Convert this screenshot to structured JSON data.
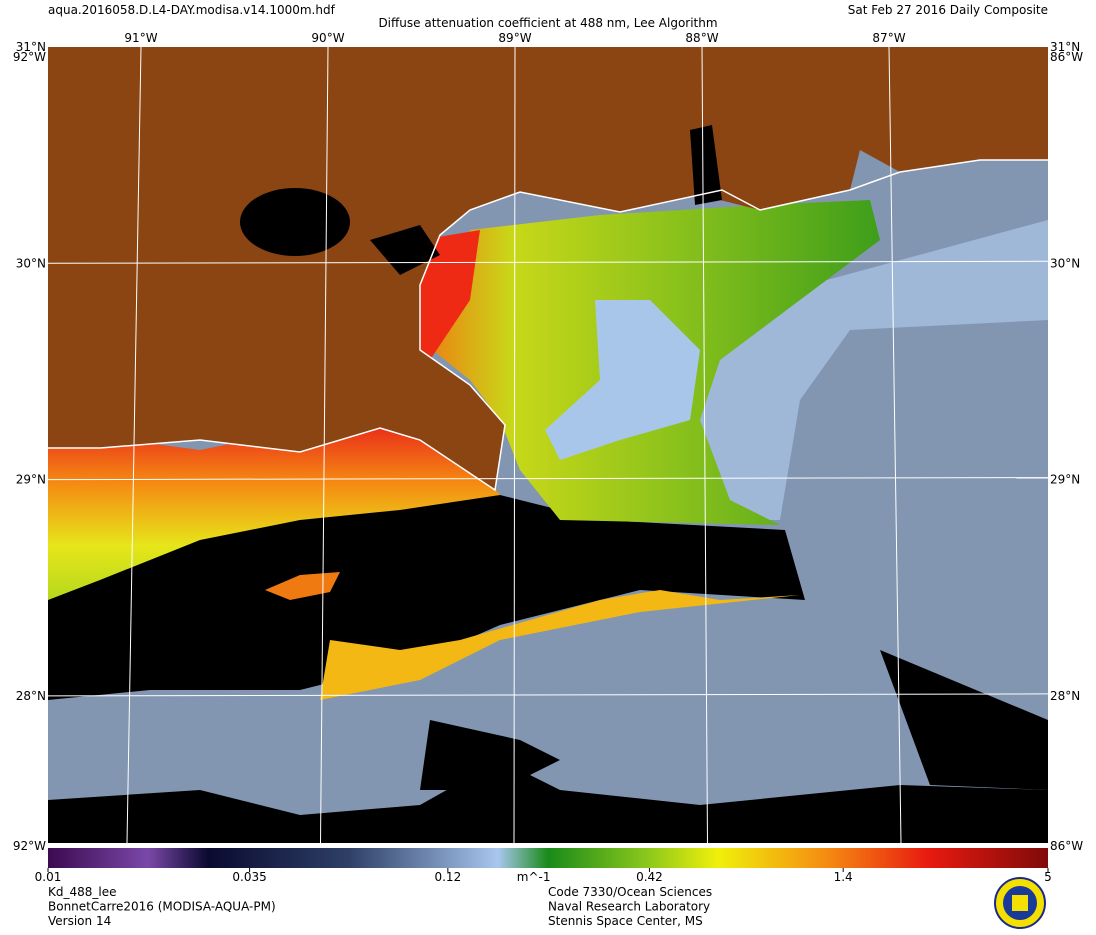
{
  "header": {
    "file": "aqua.2016058.D.L4-DAY.modisa.v14.1000m.hdf",
    "title": "Diffuse attenuation coefficient at 488 nm, Lee Algorithm",
    "date": "Sat Feb 27 2016 Daily Composite"
  },
  "map": {
    "lon_labels": [
      "91°W",
      "90°W",
      "89°W",
      "88°W",
      "87°W"
    ],
    "lat_labels": [
      "31°N",
      "30°N",
      "29°N",
      "28°N"
    ],
    "corner_lon": [
      "92°W",
      "86°W"
    ]
  },
  "colorbar": {
    "range": [
      0.01,
      5
    ],
    "log": true,
    "ticks": [
      0.01,
      0.035,
      0.12,
      0.42,
      1.4,
      5
    ],
    "unit": "m^-1"
  },
  "footer": {
    "left": [
      "Kd_488_lee",
      "BonnetCarre2016 (MODISA-AQUA-PM)",
      "Version 14"
    ],
    "center": [
      "Code 7330/Ocean Sciences",
      "Naval Research Laboratory",
      "Stennis Space Center, MS"
    ]
  }
}
